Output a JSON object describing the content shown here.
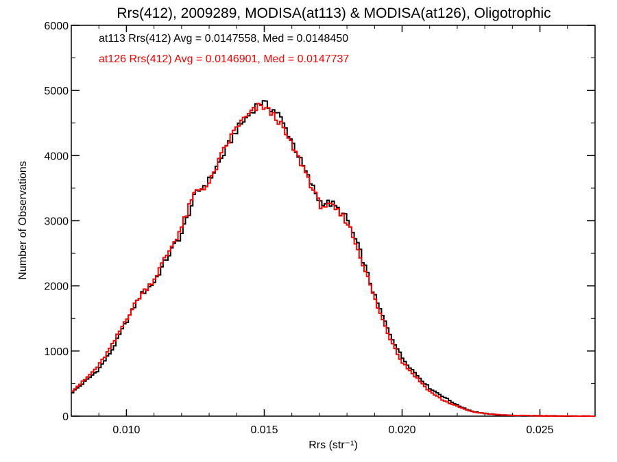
{
  "chart_data": {
    "type": "line",
    "title": "Rrs(412), 2009289, MODISA(at113) & MODISA(at126), Oligotrophic",
    "xlabel": "Rrs (str⁻¹)",
    "ylabel": "Number of Observations",
    "xlim": [
      0.008,
      0.027
    ],
    "ylim": [
      0,
      6000
    ],
    "x_ticks": [
      0.01,
      0.015,
      0.02,
      0.025
    ],
    "x_tick_labels": [
      "0.010",
      "0.015",
      "0.020",
      "0.025"
    ],
    "y_ticks": [
      0,
      1000,
      2000,
      3000,
      4000,
      5000,
      6000
    ],
    "y_tick_labels": [
      "0",
      "1000",
      "2000",
      "3000",
      "4000",
      "5000",
      "6000"
    ],
    "grid": false,
    "legend_position": "top-left",
    "series": [
      {
        "name": "at113",
        "color": "#000000",
        "legend_text": "at113 Rrs(412) Avg = 0.0147558, Med = 0.0148450",
        "x": [
          0.008,
          0.0085,
          0.009,
          0.0095,
          0.01,
          0.0105,
          0.011,
          0.0115,
          0.012,
          0.0125,
          0.013,
          0.0135,
          0.014,
          0.0145,
          0.0148,
          0.015,
          0.0155,
          0.016,
          0.0165,
          0.017,
          0.0175,
          0.018,
          0.0185,
          0.019,
          0.0195,
          0.02,
          0.0205,
          0.021,
          0.0215,
          0.022,
          0.0225,
          0.023,
          0.0235,
          0.024,
          0.025,
          0.026,
          0.027
        ],
        "y": [
          350,
          530,
          720,
          1030,
          1450,
          1850,
          2050,
          2450,
          2800,
          3400,
          3620,
          4000,
          4400,
          4650,
          4820,
          4800,
          4650,
          4230,
          3750,
          3300,
          3250,
          3030,
          2500,
          1850,
          1320,
          900,
          650,
          430,
          300,
          170,
          80,
          40,
          20,
          10,
          5,
          0,
          0
        ]
      },
      {
        "name": "at126",
        "color": "#ff0000",
        "legend_text": "at126 Rrs(412) Avg = 0.0146901, Med = 0.0147737",
        "x": [
          0.008,
          0.0085,
          0.009,
          0.0095,
          0.01,
          0.0105,
          0.011,
          0.0115,
          0.012,
          0.0125,
          0.013,
          0.0135,
          0.014,
          0.0145,
          0.0148,
          0.015,
          0.0155,
          0.016,
          0.0165,
          0.017,
          0.0175,
          0.018,
          0.0185,
          0.019,
          0.0195,
          0.02,
          0.0205,
          0.021,
          0.0215,
          0.022,
          0.0225,
          0.023,
          0.0235,
          0.024,
          0.025,
          0.026,
          0.027
        ],
        "y": [
          380,
          560,
          780,
          1100,
          1500,
          1850,
          2100,
          2500,
          2900,
          3450,
          3560,
          4050,
          4450,
          4650,
          4750,
          4750,
          4550,
          4150,
          3750,
          3250,
          3200,
          3000,
          2450,
          1800,
          1250,
          830,
          600,
          380,
          240,
          150,
          70,
          40,
          20,
          10,
          5,
          0,
          0
        ]
      }
    ]
  }
}
